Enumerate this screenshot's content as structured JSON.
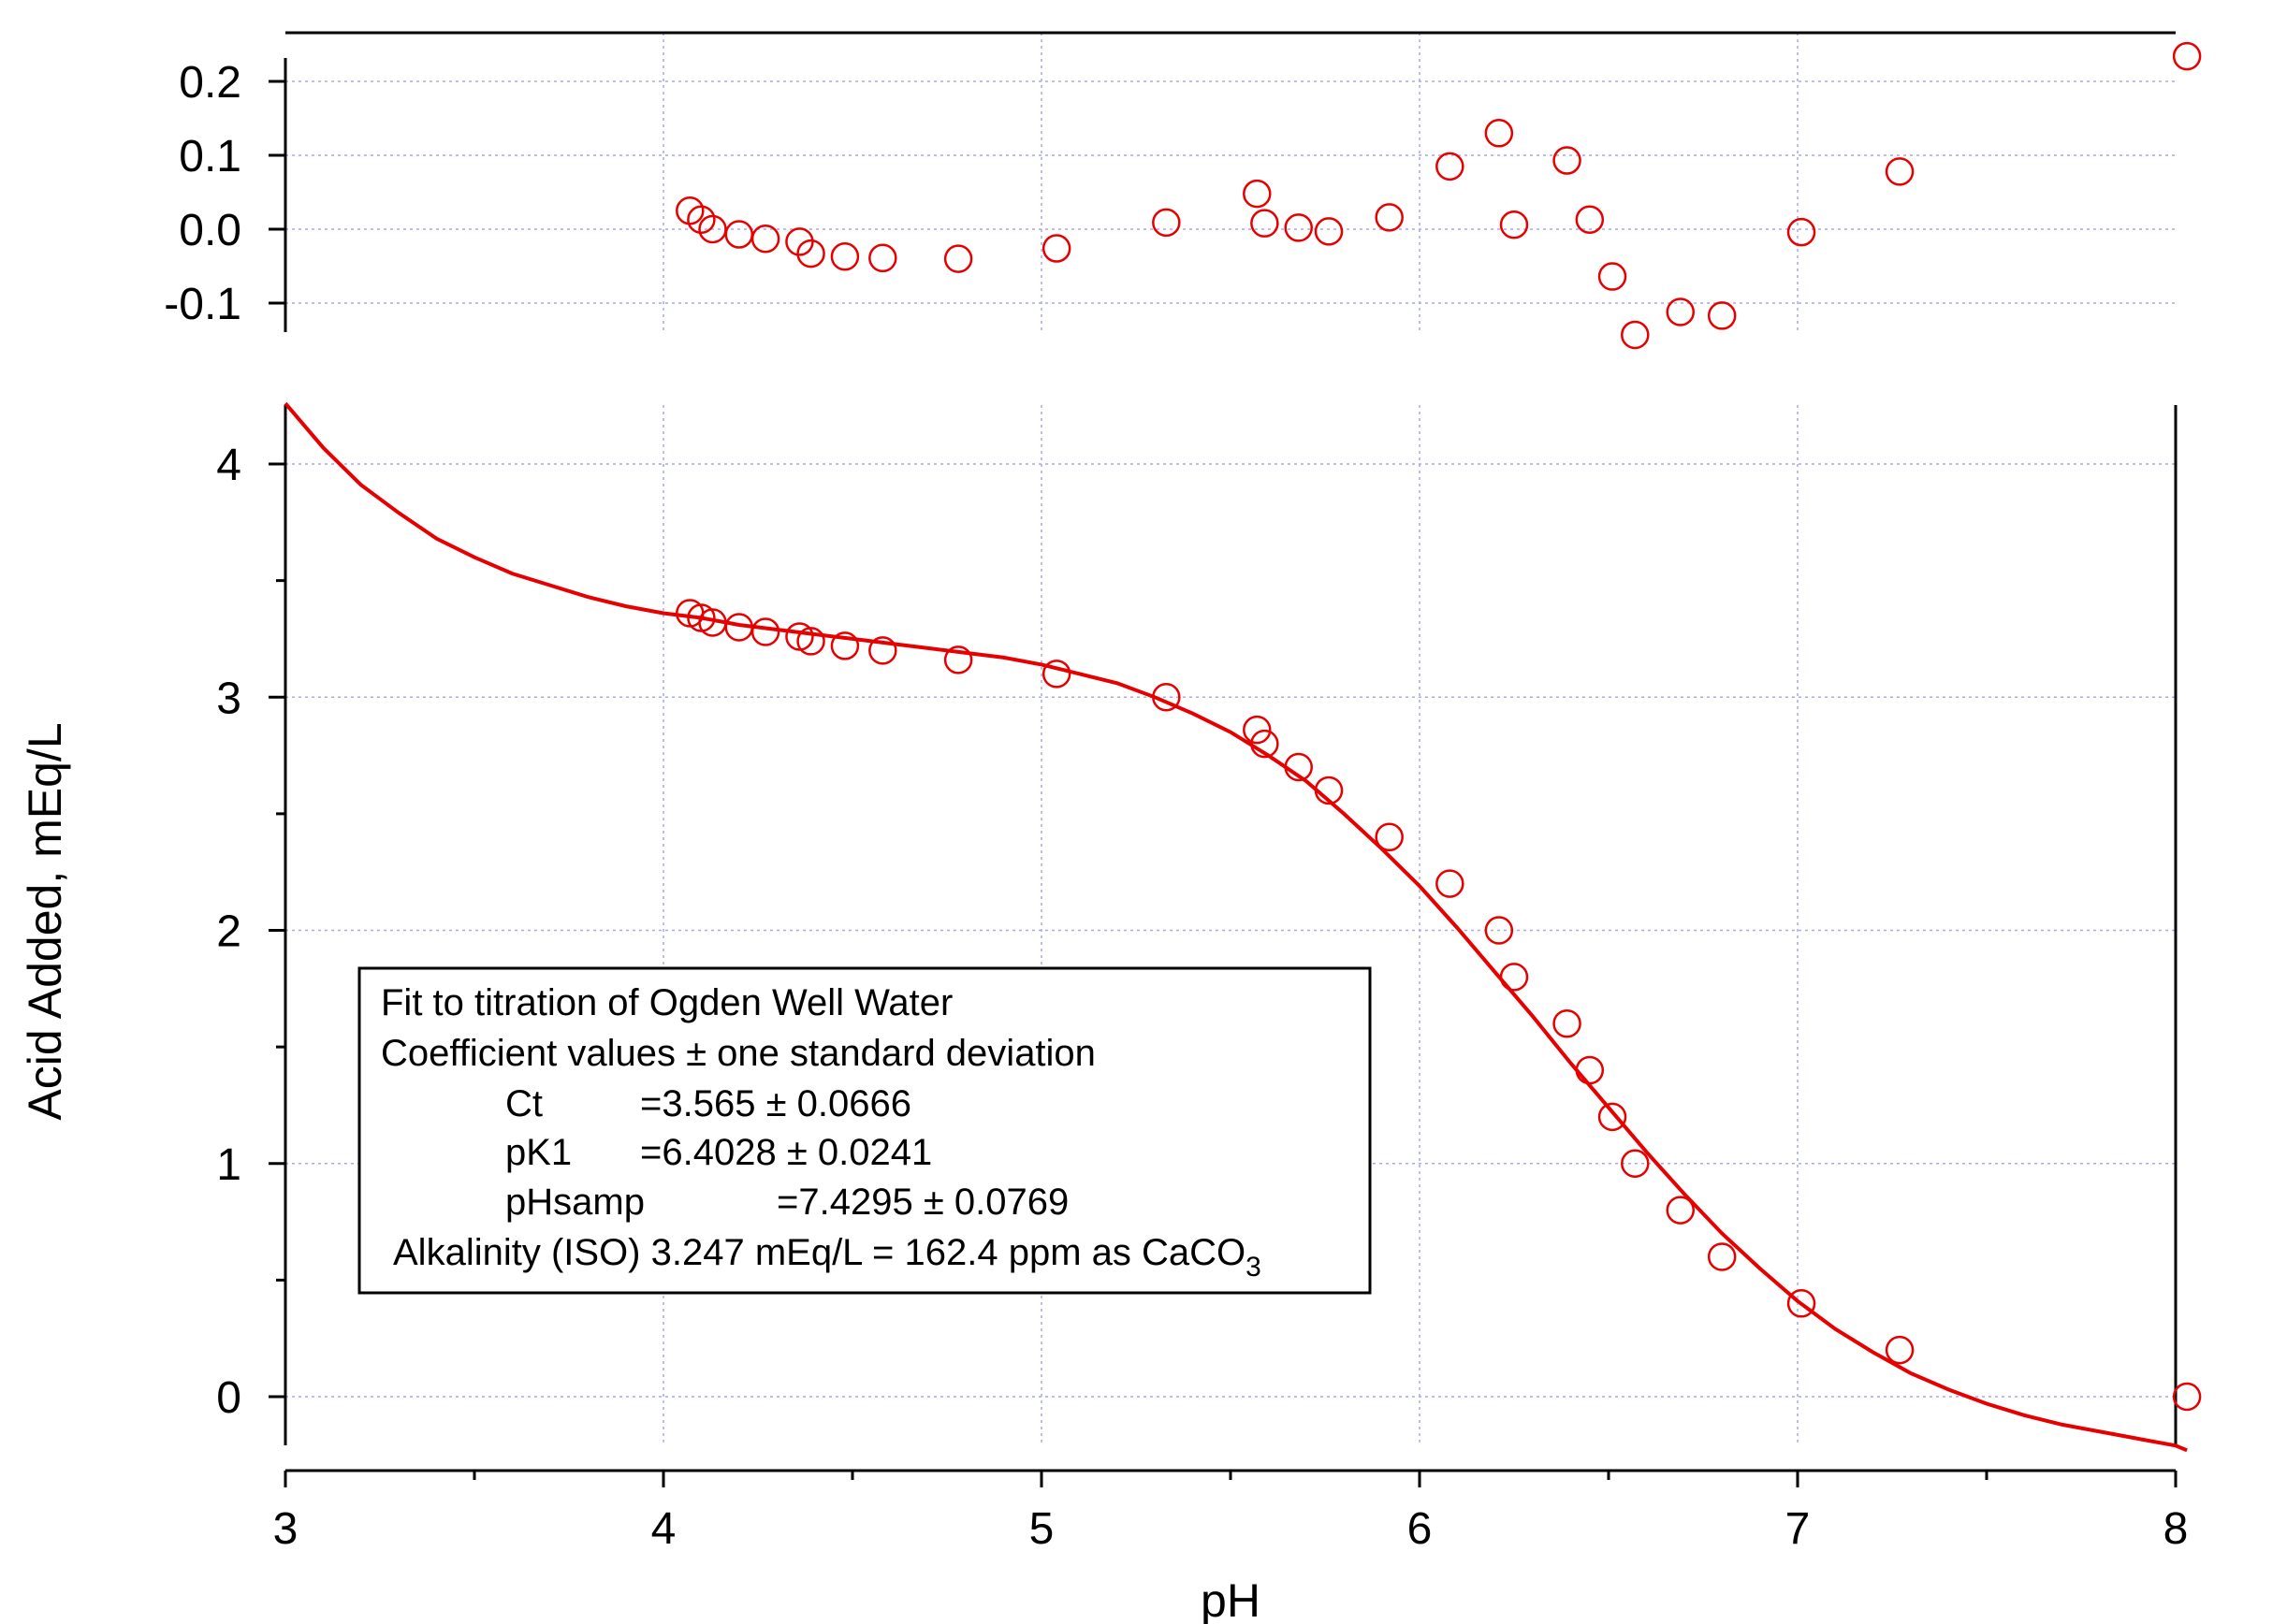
{
  "chart_data": {
    "type": "scatter",
    "x_label": "pH",
    "y_label": "Acid Added, mEq/L",
    "x_range": [
      3,
      8
    ],
    "x_ticks": [
      "3",
      "4",
      "5",
      "6",
      "7",
      "8"
    ],
    "main_y_range": [
      -0.25,
      4.3
    ],
    "main_y_ticks": [
      "0",
      "1",
      "2",
      "3",
      "4"
    ],
    "residual_y_range": [
      -0.14,
      0.24
    ],
    "residual_y_ticks": [
      "0.2",
      "0.1",
      "0.0",
      "-0.1"
    ],
    "grid": true,
    "colors": {
      "series": "#e60000",
      "grid": "#a9a9e8",
      "axes": "#000000"
    },
    "fit_parameters": {
      "Ct": 3.565,
      "pK1": 6.4028,
      "pHsamp": 7.4295
    },
    "data_points": [
      {
        "ph": 4.07,
        "acid": 3.36
      },
      {
        "ph": 4.1,
        "acid": 3.34
      },
      {
        "ph": 4.13,
        "acid": 3.32
      },
      {
        "ph": 4.2,
        "acid": 3.3
      },
      {
        "ph": 4.27,
        "acid": 3.28
      },
      {
        "ph": 4.36,
        "acid": 3.26
      },
      {
        "ph": 4.39,
        "acid": 3.24
      },
      {
        "ph": 4.48,
        "acid": 3.22
      },
      {
        "ph": 4.58,
        "acid": 3.2
      },
      {
        "ph": 4.78,
        "acid": 3.16
      },
      {
        "ph": 5.04,
        "acid": 3.1
      },
      {
        "ph": 5.33,
        "acid": 3.0
      },
      {
        "ph": 5.57,
        "acid": 2.86
      },
      {
        "ph": 5.59,
        "acid": 2.8
      },
      {
        "ph": 5.68,
        "acid": 2.7
      },
      {
        "ph": 5.76,
        "acid": 2.6
      },
      {
        "ph": 5.92,
        "acid": 2.4
      },
      {
        "ph": 6.08,
        "acid": 2.2
      },
      {
        "ph": 6.21,
        "acid": 2.0
      },
      {
        "ph": 6.25,
        "acid": 1.8
      },
      {
        "ph": 6.39,
        "acid": 1.6
      },
      {
        "ph": 6.45,
        "acid": 1.4
      },
      {
        "ph": 6.51,
        "acid": 1.2
      },
      {
        "ph": 6.57,
        "acid": 1.0
      },
      {
        "ph": 6.69,
        "acid": 0.8
      },
      {
        "ph": 6.8,
        "acid": 0.6
      },
      {
        "ph": 7.01,
        "acid": 0.4
      },
      {
        "ph": 7.27,
        "acid": 0.2
      },
      {
        "ph": 8.03,
        "acid": 0.0
      }
    ],
    "residuals": [
      {
        "ph": 4.07,
        "res": 0.025
      },
      {
        "ph": 4.1,
        "res": 0.013
      },
      {
        "ph": 4.13,
        "res": 0.0
      },
      {
        "ph": 4.2,
        "res": -0.007
      },
      {
        "ph": 4.27,
        "res": -0.013
      },
      {
        "ph": 4.36,
        "res": -0.017
      },
      {
        "ph": 4.39,
        "res": -0.033
      },
      {
        "ph": 4.48,
        "res": -0.037
      },
      {
        "ph": 4.58,
        "res": -0.039
      },
      {
        "ph": 4.78,
        "res": -0.04
      },
      {
        "ph": 5.04,
        "res": -0.026
      },
      {
        "ph": 5.33,
        "res": 0.009
      },
      {
        "ph": 5.57,
        "res": 0.048
      },
      {
        "ph": 5.59,
        "res": 0.008
      },
      {
        "ph": 5.68,
        "res": 0.002
      },
      {
        "ph": 5.76,
        "res": -0.003
      },
      {
        "ph": 5.92,
        "res": 0.016
      },
      {
        "ph": 6.08,
        "res": 0.085
      },
      {
        "ph": 6.21,
        "res": 0.13
      },
      {
        "ph": 6.25,
        "res": 0.006
      },
      {
        "ph": 6.39,
        "res": 0.093
      },
      {
        "ph": 6.45,
        "res": 0.013
      },
      {
        "ph": 6.51,
        "res": -0.064
      },
      {
        "ph": 6.57,
        "res": -0.143
      },
      {
        "ph": 6.69,
        "res": -0.112
      },
      {
        "ph": 6.8,
        "res": -0.117
      },
      {
        "ph": 7.01,
        "res": -0.004
      },
      {
        "ph": 7.27,
        "res": 0.078
      },
      {
        "ph": 8.03,
        "res": 0.234
      }
    ],
    "fit_curve": [
      {
        "ph": 3.0,
        "acid": 4.26
      },
      {
        "ph": 3.1,
        "acid": 4.07
      },
      {
        "ph": 3.2,
        "acid": 3.91
      },
      {
        "ph": 3.3,
        "acid": 3.79
      },
      {
        "ph": 3.4,
        "acid": 3.68
      },
      {
        "ph": 3.5,
        "acid": 3.6
      },
      {
        "ph": 3.6,
        "acid": 3.53
      },
      {
        "ph": 3.7,
        "acid": 3.48
      },
      {
        "ph": 3.8,
        "acid": 3.43
      },
      {
        "ph": 3.9,
        "acid": 3.39
      },
      {
        "ph": 4.0,
        "acid": 3.36
      },
      {
        "ph": 4.1,
        "acid": 3.34
      },
      {
        "ph": 4.2,
        "acid": 3.31
      },
      {
        "ph": 4.3,
        "acid": 3.29
      },
      {
        "ph": 4.4,
        "acid": 3.27
      },
      {
        "ph": 4.5,
        "acid": 3.25
      },
      {
        "ph": 4.6,
        "acid": 3.23
      },
      {
        "ph": 4.7,
        "acid": 3.21
      },
      {
        "ph": 4.8,
        "acid": 3.19
      },
      {
        "ph": 4.9,
        "acid": 3.17
      },
      {
        "ph": 5.0,
        "acid": 3.14
      },
      {
        "ph": 5.1,
        "acid": 3.1
      },
      {
        "ph": 5.2,
        "acid": 3.06
      },
      {
        "ph": 5.3,
        "acid": 3.0
      },
      {
        "ph": 5.4,
        "acid": 2.93
      },
      {
        "ph": 5.5,
        "acid": 2.85
      },
      {
        "ph": 5.6,
        "acid": 2.75
      },
      {
        "ph": 5.7,
        "acid": 2.64
      },
      {
        "ph": 5.8,
        "acid": 2.5
      },
      {
        "ph": 5.9,
        "acid": 2.35
      },
      {
        "ph": 6.0,
        "acid": 2.19
      },
      {
        "ph": 6.1,
        "acid": 2.01
      },
      {
        "ph": 6.2,
        "acid": 1.82
      },
      {
        "ph": 6.3,
        "acid": 1.63
      },
      {
        "ph": 6.4,
        "acid": 1.43
      },
      {
        "ph": 6.5,
        "acid": 1.24
      },
      {
        "ph": 6.6,
        "acid": 1.05
      },
      {
        "ph": 6.7,
        "acid": 0.87
      },
      {
        "ph": 6.8,
        "acid": 0.7
      },
      {
        "ph": 6.9,
        "acid": 0.55
      },
      {
        "ph": 7.0,
        "acid": 0.41
      },
      {
        "ph": 7.1,
        "acid": 0.29
      },
      {
        "ph": 7.2,
        "acid": 0.19
      },
      {
        "ph": 7.3,
        "acid": 0.1
      },
      {
        "ph": 7.4,
        "acid": 0.03
      },
      {
        "ph": 7.5,
        "acid": -0.03
      },
      {
        "ph": 7.6,
        "acid": -0.08
      },
      {
        "ph": 7.7,
        "acid": -0.12
      },
      {
        "ph": 7.8,
        "acid": -0.15
      },
      {
        "ph": 7.9,
        "acid": -0.18
      },
      {
        "ph": 8.0,
        "acid": -0.21
      },
      {
        "ph": 8.03,
        "acid": -0.23
      }
    ],
    "legend": {
      "line1": "Fit to titration of Ogden Well Water",
      "line2": "Coefficient values ± one standard deviation",
      "ct_name": "Ct",
      "ct_value": "=3.565 ± 0.0666",
      "pk1_name": "pK1",
      "pk1_value": "=6.4028 ± 0.0241",
      "phsamp_name": "pHsamp",
      "phsamp_value": "=7.4295 ± 0.0769",
      "alkalinity_text": "Alkalinity (ISO) 3.247 mEq/L = 162.4 ppm as CaCO",
      "alkalinity_subscript": "3"
    }
  }
}
